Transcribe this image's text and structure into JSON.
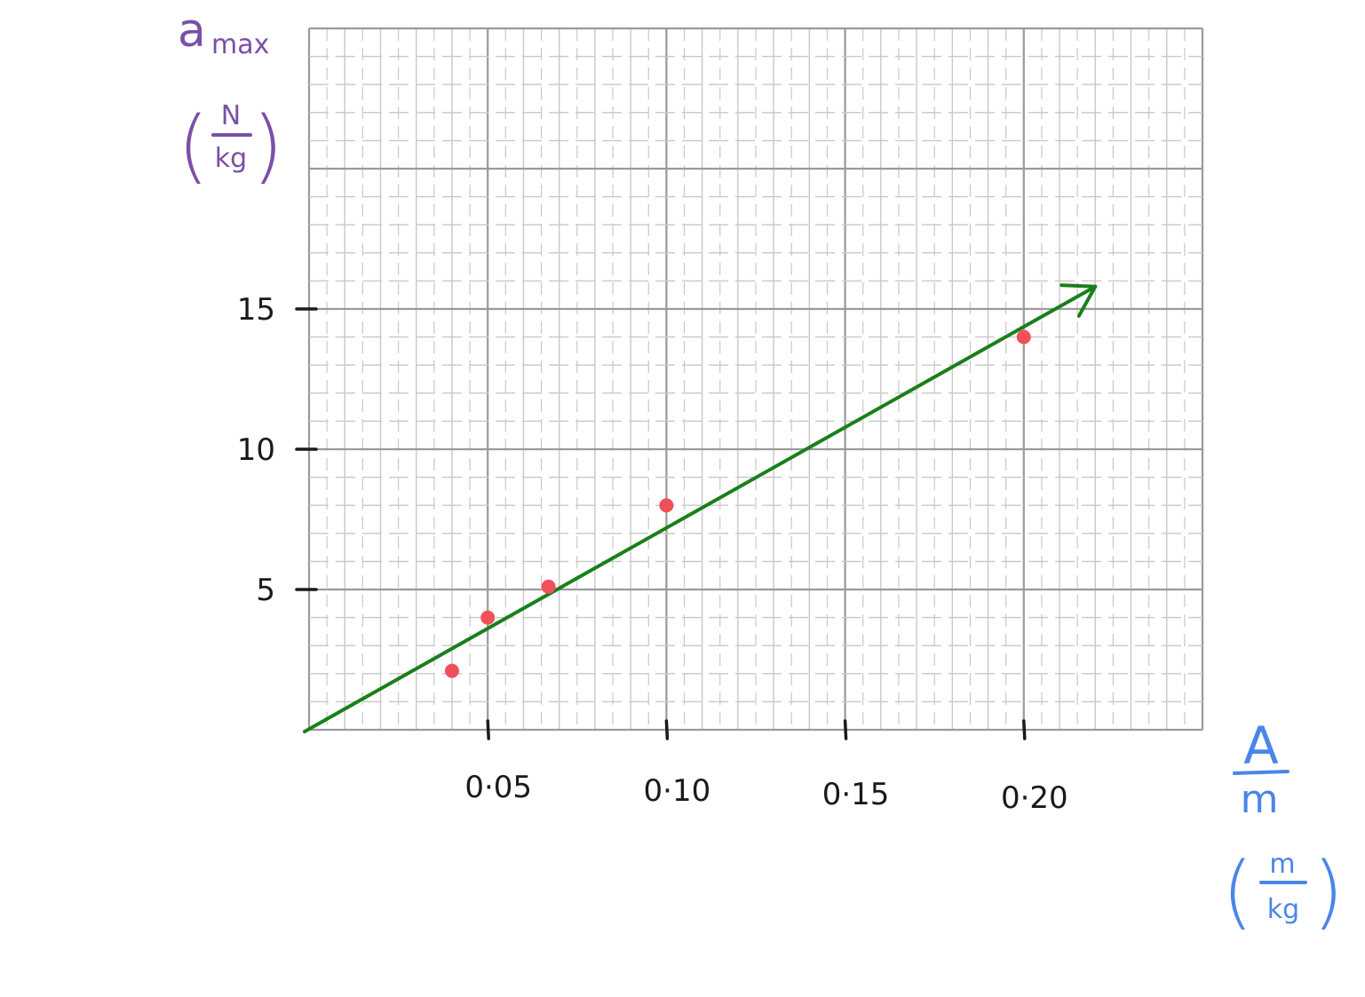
{
  "chart_data": {
    "type": "scatter",
    "title": "",
    "ylabel": {
      "symbol": "a",
      "subscript": "max",
      "unit_numerator": "N",
      "unit_denominator": "kg"
    },
    "xlabel": {
      "numerator": "A",
      "denominator": "m",
      "unit_numerator": "m",
      "unit_denominator": "kg"
    },
    "xlim": [
      0,
      0.25
    ],
    "ylim": [
      0,
      25
    ],
    "grid": true,
    "x_ticks": [
      0.05,
      0.1,
      0.15,
      0.2
    ],
    "x_tick_labels": [
      "0·05",
      "0·10",
      "0·15",
      "0·20"
    ],
    "y_ticks": [
      5,
      10,
      15
    ],
    "y_tick_labels": [
      "5",
      "10",
      "15"
    ],
    "series": [
      {
        "type": "scatter",
        "x": [
          0.04,
          0.05,
          0.067,
          0.1,
          0.2
        ],
        "y": [
          2.1,
          4.0,
          5.1,
          8.0,
          14.0
        ]
      },
      {
        "type": "line",
        "x": [
          0.0,
          0.22
        ],
        "y": [
          0.0,
          15.8
        ]
      }
    ],
    "colors": {
      "points": "#f0505a",
      "fit_line": "#1a7f1a",
      "grid_major": "#9a9a9a",
      "grid_minor": "#c8c8c8",
      "ylabel": "#7b4fa8",
      "xlabel": "#4a86e8",
      "ticks": "#1a1a1a"
    }
  }
}
